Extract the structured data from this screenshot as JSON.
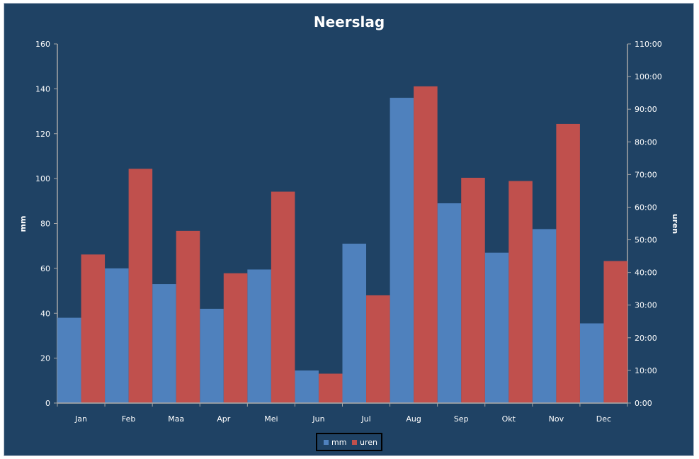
{
  "chart_data": {
    "type": "bar",
    "title": "Neerslag",
    "categories": [
      "Jan",
      "Feb",
      "Maa",
      "Apr",
      "Mei",
      "Jun",
      "Jul",
      "Aug",
      "Sep",
      "Okt",
      "Nov",
      "Dec"
    ],
    "series": [
      {
        "name": "mm",
        "axis": "left",
        "color": "#4f81bd",
        "values": [
          38,
          60,
          53,
          42,
          59.5,
          14.5,
          71,
          136,
          89,
          67,
          77.5,
          35.5
        ]
      },
      {
        "name": "uren",
        "axis": "right",
        "color": "#c0504d",
        "values": [
          45.5,
          71.75,
          52.75,
          39.75,
          64.75,
          9,
          33,
          97,
          69,
          68,
          85.5,
          43.5
        ],
        "values_unit": "hours"
      }
    ],
    "ylabel": "mm",
    "ylim": [
      0,
      160
    ],
    "yticks": [
      "0",
      "20",
      "40",
      "60",
      "80",
      "100",
      "120",
      "140",
      "160"
    ],
    "y2label": "uren",
    "y2lim": [
      0,
      110
    ],
    "y2ticks": [
      "0:00",
      "10:00",
      "20:00",
      "30:00",
      "40:00",
      "50:00",
      "60:00",
      "70:00",
      "80:00",
      "90:00",
      "100:00",
      "110:00"
    ],
    "grid": false,
    "legend": "bottom-center"
  },
  "colors": {
    "background": "#1f4264",
    "axis": "#a6a6a6",
    "text": "#ffffff"
  }
}
